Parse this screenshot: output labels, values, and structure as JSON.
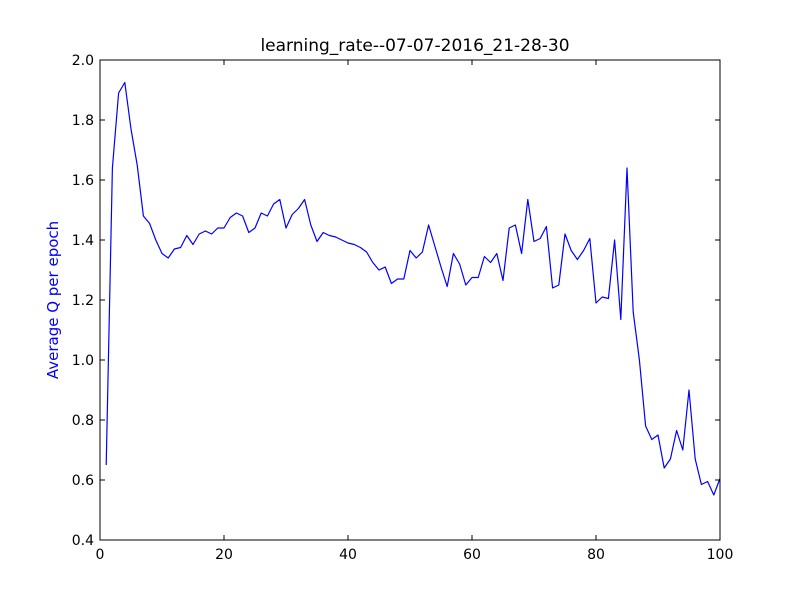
{
  "chart_data": {
    "type": "line",
    "title": "learning_rate--07-07-2016_21-28-30",
    "xlabel": "",
    "ylabel": "Average Q per epoch",
    "xlim": [
      0,
      100
    ],
    "ylim": [
      0.4,
      2.0
    ],
    "xticks": [
      "0",
      "20",
      "40",
      "60",
      "80",
      "100"
    ],
    "yticks": [
      "0.4",
      "0.6",
      "0.8",
      "1.0",
      "1.2",
      "1.4",
      "1.6",
      "1.8",
      "2.0"
    ],
    "grid": false,
    "legend": "none",
    "series": [
      {
        "color": "#0000ff",
        "ylabel_color": "#0000ff",
        "x": [
          1,
          2,
          3,
          4,
          5,
          6,
          7,
          8,
          9,
          10,
          11,
          12,
          13,
          14,
          15,
          16,
          17,
          18,
          19,
          20,
          21,
          22,
          23,
          24,
          25,
          26,
          27,
          28,
          29,
          30,
          31,
          32,
          33,
          34,
          35,
          36,
          37,
          38,
          39,
          40,
          41,
          42,
          43,
          44,
          45,
          46,
          47,
          48,
          49,
          50,
          51,
          52,
          53,
          54,
          55,
          56,
          57,
          58,
          59,
          60,
          61,
          62,
          63,
          64,
          65,
          66,
          67,
          68,
          69,
          70,
          71,
          72,
          73,
          74,
          75,
          76,
          77,
          78,
          79,
          80,
          81,
          82,
          83,
          84,
          85,
          86,
          87,
          88,
          89,
          90,
          91,
          92,
          93,
          94,
          95,
          96,
          97,
          98,
          99,
          100
        ],
        "values": [
          0.65,
          1.64,
          1.89,
          1.925,
          1.77,
          1.65,
          1.48,
          1.455,
          1.4,
          1.355,
          1.34,
          1.37,
          1.375,
          1.415,
          1.385,
          1.42,
          1.43,
          1.42,
          1.44,
          1.44,
          1.475,
          1.49,
          1.48,
          1.425,
          1.44,
          1.49,
          1.48,
          1.52,
          1.535,
          1.44,
          1.485,
          1.505,
          1.535,
          1.45,
          1.395,
          1.425,
          1.415,
          1.41,
          1.4,
          1.39,
          1.385,
          1.375,
          1.36,
          1.325,
          1.3,
          1.31,
          1.255,
          1.27,
          1.27,
          1.365,
          1.34,
          1.36,
          1.45,
          1.38,
          1.31,
          1.245,
          1.355,
          1.32,
          1.25,
          1.275,
          1.275,
          1.345,
          1.325,
          1.355,
          1.265,
          1.44,
          1.45,
          1.355,
          1.535,
          1.395,
          1.405,
          1.445,
          1.24,
          1.25,
          1.42,
          1.365,
          1.335,
          1.365,
          1.405,
          1.19,
          1.21,
          1.205,
          1.4,
          1.135,
          1.64,
          1.16,
          1.0,
          0.78,
          0.735,
          0.75,
          0.64,
          0.67,
          0.765,
          0.7,
          0.9,
          0.67,
          0.585,
          0.595,
          0.55,
          0.605
        ]
      }
    ]
  }
}
